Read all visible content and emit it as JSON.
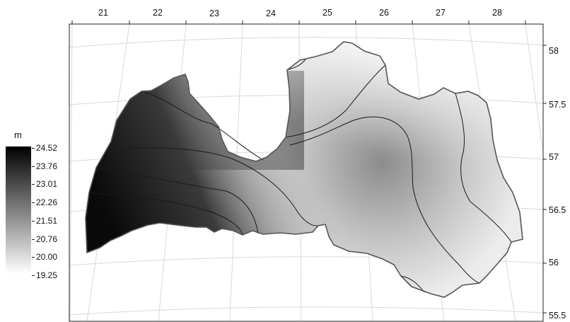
{
  "legend": {
    "unit": "m",
    "values": [
      "24.52",
      "23.76",
      "23.01",
      "22.26",
      "21.51",
      "20.76",
      "20.00",
      "19.25"
    ],
    "color_high": "#000000",
    "color_low": "#ffffff"
  },
  "map": {
    "longitude_labels": [
      "21",
      "22",
      "23",
      "24",
      "25",
      "26",
      "27",
      "28"
    ],
    "latitude_labels": [
      "58",
      "57.5",
      "57",
      "56.5",
      "56",
      "55.5"
    ],
    "frame_color": "#222222",
    "graticule_color": "#d8d8d8",
    "boundary_color": "#555555"
  }
}
